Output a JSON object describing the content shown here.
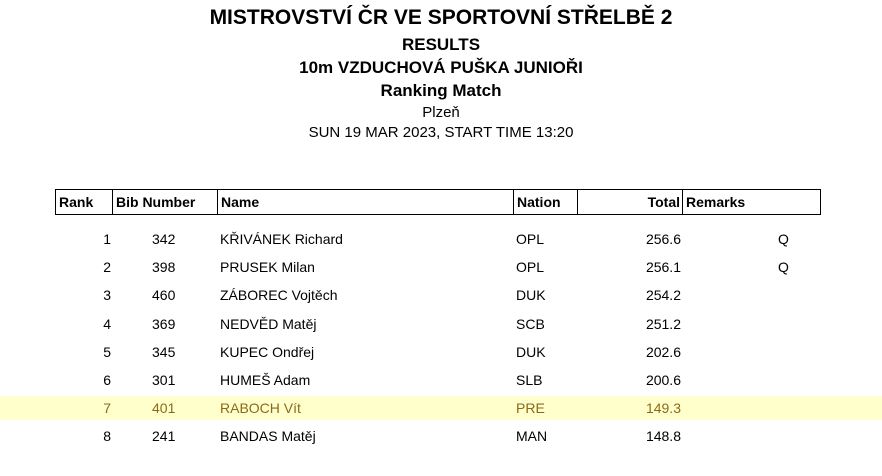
{
  "header": {
    "line1": "MISTROVSTVÍ ČR VE SPORTOVNÍ STŘELBĚ 2",
    "line2": "RESULTS",
    "line3": "10m VZDUCHOVÁ PUŠKA JUNIOŘI",
    "line4": "Ranking Match",
    "line5": "Plzeň",
    "line6": "SUN 19 MAR 2023, START TIME 13:20"
  },
  "table": {
    "columns": [
      "Rank",
      "Bib Number",
      "Name",
      "Nation",
      "Total",
      "Remarks"
    ],
    "rows": [
      {
        "rank": "1",
        "bib": "342",
        "name": "KŘIVÁNEK Richard",
        "nation": "OPL",
        "total": "256.6",
        "remarks": "Q",
        "highlight": false
      },
      {
        "rank": "2",
        "bib": "398",
        "name": "PRUSEK Milan",
        "nation": "OPL",
        "total": "256.1",
        "remarks": "Q",
        "highlight": false
      },
      {
        "rank": "3",
        "bib": "460",
        "name": "ZÁBOREC Vojtěch",
        "nation": "DUK",
        "total": "254.2",
        "remarks": "",
        "highlight": false
      },
      {
        "rank": "4",
        "bib": "369",
        "name": "NEDVĚD Matěj",
        "nation": "SCB",
        "total": "251.2",
        "remarks": "",
        "highlight": false
      },
      {
        "rank": "5",
        "bib": "345",
        "name": "KUPEC Ondřej",
        "nation": "DUK",
        "total": "202.6",
        "remarks": "",
        "highlight": false
      },
      {
        "rank": "6",
        "bib": "301",
        "name": "HUMEŠ Adam",
        "nation": "SLB",
        "total": "200.6",
        "remarks": "",
        "highlight": false
      },
      {
        "rank": "7",
        "bib": "401",
        "name": "RABOCH Vít",
        "nation": "PRE",
        "total": "149.3",
        "remarks": "",
        "highlight": true
      },
      {
        "rank": "8",
        "bib": "241",
        "name": "BANDAS Matěj",
        "nation": "MAN",
        "total": "148.8",
        "remarks": "",
        "highlight": false
      }
    ]
  },
  "colors": {
    "highlight_background": "#ffffcc",
    "highlight_text": "#8a6a1a"
  }
}
